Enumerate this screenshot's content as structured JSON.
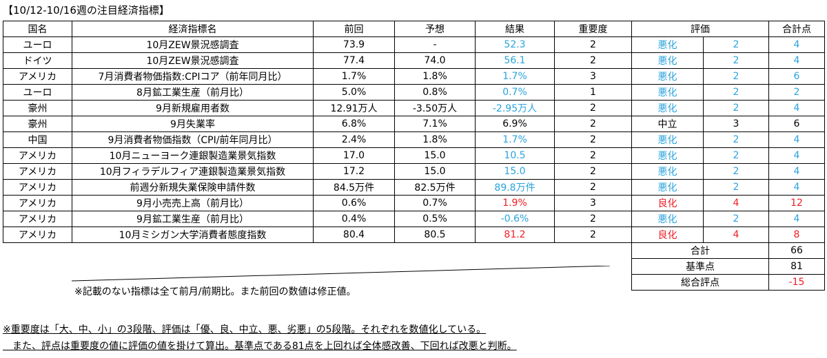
{
  "title": "【10/12-10/16週の注目経済指標】",
  "headers": {
    "country": "国名",
    "indicator": "経済指標名",
    "previous": "前回",
    "forecast": "予想",
    "result": "結果",
    "importance": "重要度",
    "rating": "評価",
    "total": "合計点"
  },
  "rows": [
    {
      "country": "ユーロ",
      "indicator": "10月ZEW景況感調査",
      "previous": "73.9",
      "forecast": "-",
      "result": "52.3",
      "importance": "2",
      "rating": "悪化",
      "rating_value": "2",
      "total": "4",
      "tone": "blue"
    },
    {
      "country": "ドイツ",
      "indicator": "10月ZEW景況感調査",
      "previous": "77.4",
      "forecast": "74.0",
      "result": "56.1",
      "importance": "2",
      "rating": "悪化",
      "rating_value": "2",
      "total": "4",
      "tone": "blue"
    },
    {
      "country": "アメリカ",
      "indicator": "7月消費者物価指数:CPIコア（前年同月比）",
      "previous": "1.7%",
      "forecast": "1.8%",
      "result": "1.7%",
      "importance": "3",
      "rating": "悪化",
      "rating_value": "2",
      "total": "6",
      "tone": "blue"
    },
    {
      "country": "ユーロ",
      "indicator": "8月鉱工業生産（前月比）",
      "previous": "5.0%",
      "forecast": "0.8%",
      "result": "0.7%",
      "importance": "1",
      "rating": "悪化",
      "rating_value": "2",
      "total": "2",
      "tone": "blue"
    },
    {
      "country": "豪州",
      "indicator": "9月新規雇用者数",
      "previous": "12.91万人",
      "forecast": "-3.50万人",
      "result": "-2.95万人",
      "importance": "2",
      "rating": "悪化",
      "rating_value": "2",
      "total": "4",
      "tone": "blue"
    },
    {
      "country": "豪州",
      "indicator": "9月失業率",
      "previous": "6.8%",
      "forecast": "7.1%",
      "result": "6.9%",
      "importance": "2",
      "rating": "中立",
      "rating_value": "3",
      "total": "6",
      "tone": "black"
    },
    {
      "country": "中国",
      "indicator": "9月消費者物価指数（CPI/前年同月比）",
      "previous": "2.4%",
      "forecast": "1.8%",
      "result": "1.7%",
      "importance": "2",
      "rating": "悪化",
      "rating_value": "2",
      "total": "4",
      "tone": "blue"
    },
    {
      "country": "アメリカ",
      "indicator": "10月ニューヨーク連銀製造業景気指数",
      "previous": "17.0",
      "forecast": "15.0",
      "result": "10.5",
      "importance": "2",
      "rating": "悪化",
      "rating_value": "2",
      "total": "4",
      "tone": "blue"
    },
    {
      "country": "アメリカ",
      "indicator": "10月フィラデルフィア連銀製造業景気指数",
      "previous": "17.2",
      "forecast": "15.0",
      "result": "15.0",
      "importance": "2",
      "rating": "悪化",
      "rating_value": "2",
      "total": "4",
      "tone": "blue"
    },
    {
      "country": "アメリカ",
      "indicator": "前週分新規失業保険申請件数",
      "previous": "84.5万件",
      "forecast": "82.5万件",
      "result": "89.8万件",
      "importance": "2",
      "rating": "悪化",
      "rating_value": "2",
      "total": "4",
      "tone": "blue"
    },
    {
      "country": "アメリカ",
      "indicator": "9月小売売上高（前月比）",
      "previous": "0.6%",
      "forecast": "0.7%",
      "result": "1.9%",
      "importance": "3",
      "rating": "良化",
      "rating_value": "4",
      "total": "12",
      "tone": "red"
    },
    {
      "country": "アメリカ",
      "indicator": "9月鉱工業生産（前月比）",
      "previous": "0.4%",
      "forecast": "0.5%",
      "result": "-0.6%",
      "importance": "2",
      "rating": "悪化",
      "rating_value": "2",
      "total": "4",
      "tone": "blue"
    },
    {
      "country": "アメリカ",
      "indicator": "10月ミシガン大学消費者態度指数",
      "previous": "80.4",
      "forecast": "80.5",
      "result": "81.2",
      "importance": "2",
      "rating": "良化",
      "rating_value": "4",
      "total": "8",
      "tone": "red"
    }
  ],
  "summary": {
    "sum_label": "合計",
    "sum_value": "66",
    "base_label": "基準点",
    "base_value": "81",
    "score_label": "総合評点",
    "score_value": "-15"
  },
  "note": "※記載のない指標は全て前月/前期比。また前回の数値は修正値。",
  "footnote_1": "※重要度は「大、中、小」の3段階、評価は「優、良、中立、悪、劣悪」の5段階。それぞれを数値化している。",
  "footnote_2": "　また、評点は重要度の値に評価の値を掛けて算出。基準点である81点を上回れば全体感改善、下回れば改悪と判断。",
  "colors": {
    "worse": "#2aa3dc",
    "better": "#ee1c25",
    "neutral": "#000000"
  }
}
